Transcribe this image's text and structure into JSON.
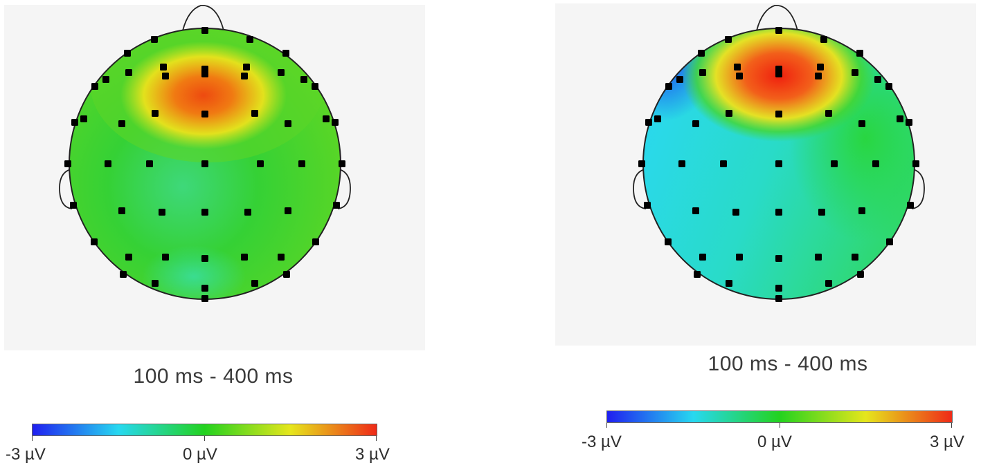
{
  "panels": [
    {
      "time_window": "100 ms - 400 ms",
      "colorbar": {
        "min_label": "-3 µV",
        "mid_label": "0 µV",
        "max_label": "3 µV"
      },
      "field": {
        "peak_value": 0.78,
        "peak_location": "frontal",
        "background_value": 0.15,
        "low_value": -0.05
      }
    },
    {
      "time_window": "100 ms - 400 ms",
      "colorbar": {
        "min_label": "-3 µV",
        "mid_label": "0 µV",
        "max_label": "3 µV"
      },
      "field": {
        "peak_value": 0.9,
        "peak_location": "frontal",
        "background_value": -0.3,
        "low_value": -0.85
      }
    }
  ],
  "colormap": [
    "#1f1ff0",
    "#27d8f0",
    "#23d21f",
    "#e6e61c",
    "#ef2a18"
  ],
  "electrode_color": "#000000"
}
